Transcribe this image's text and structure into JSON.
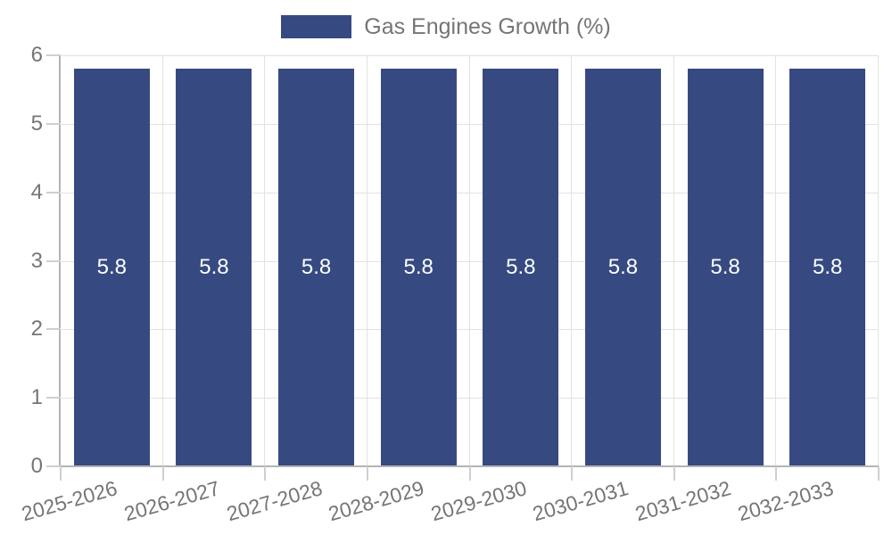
{
  "legend": {
    "label": "Gas Engines Growth (%)"
  },
  "colors": {
    "bar": "#364A81",
    "grid": "#e2e2e2",
    "axis": "#b3b3b3",
    "tick": "#cfcfcf",
    "axis_text": "#757575",
    "legend_text": "#757575",
    "value_text": "#ffffff",
    "background": "#ffffff"
  },
  "chart_data": {
    "type": "bar",
    "title": "Gas Engines Growth (%)",
    "categories": [
      "2025-2026",
      "2026-2027",
      "2027-2028",
      "2028-2029",
      "2029-2030",
      "2030-2031",
      "2031-2032",
      "2032-2033"
    ],
    "values": [
      5.8,
      5.8,
      5.8,
      5.8,
      5.8,
      5.8,
      5.8,
      5.8
    ],
    "value_labels": [
      "5.8",
      "5.8",
      "5.8",
      "5.8",
      "5.8",
      "5.8",
      "5.8",
      "5.8"
    ],
    "xlabel": "",
    "ylabel": "",
    "ylim": [
      0,
      6
    ],
    "y_ticks": [
      0,
      1,
      2,
      3,
      4,
      5,
      6
    ],
    "grid": true,
    "legend_position": "top",
    "show_value_labels": true,
    "x_label_rotation_deg": -16
  }
}
